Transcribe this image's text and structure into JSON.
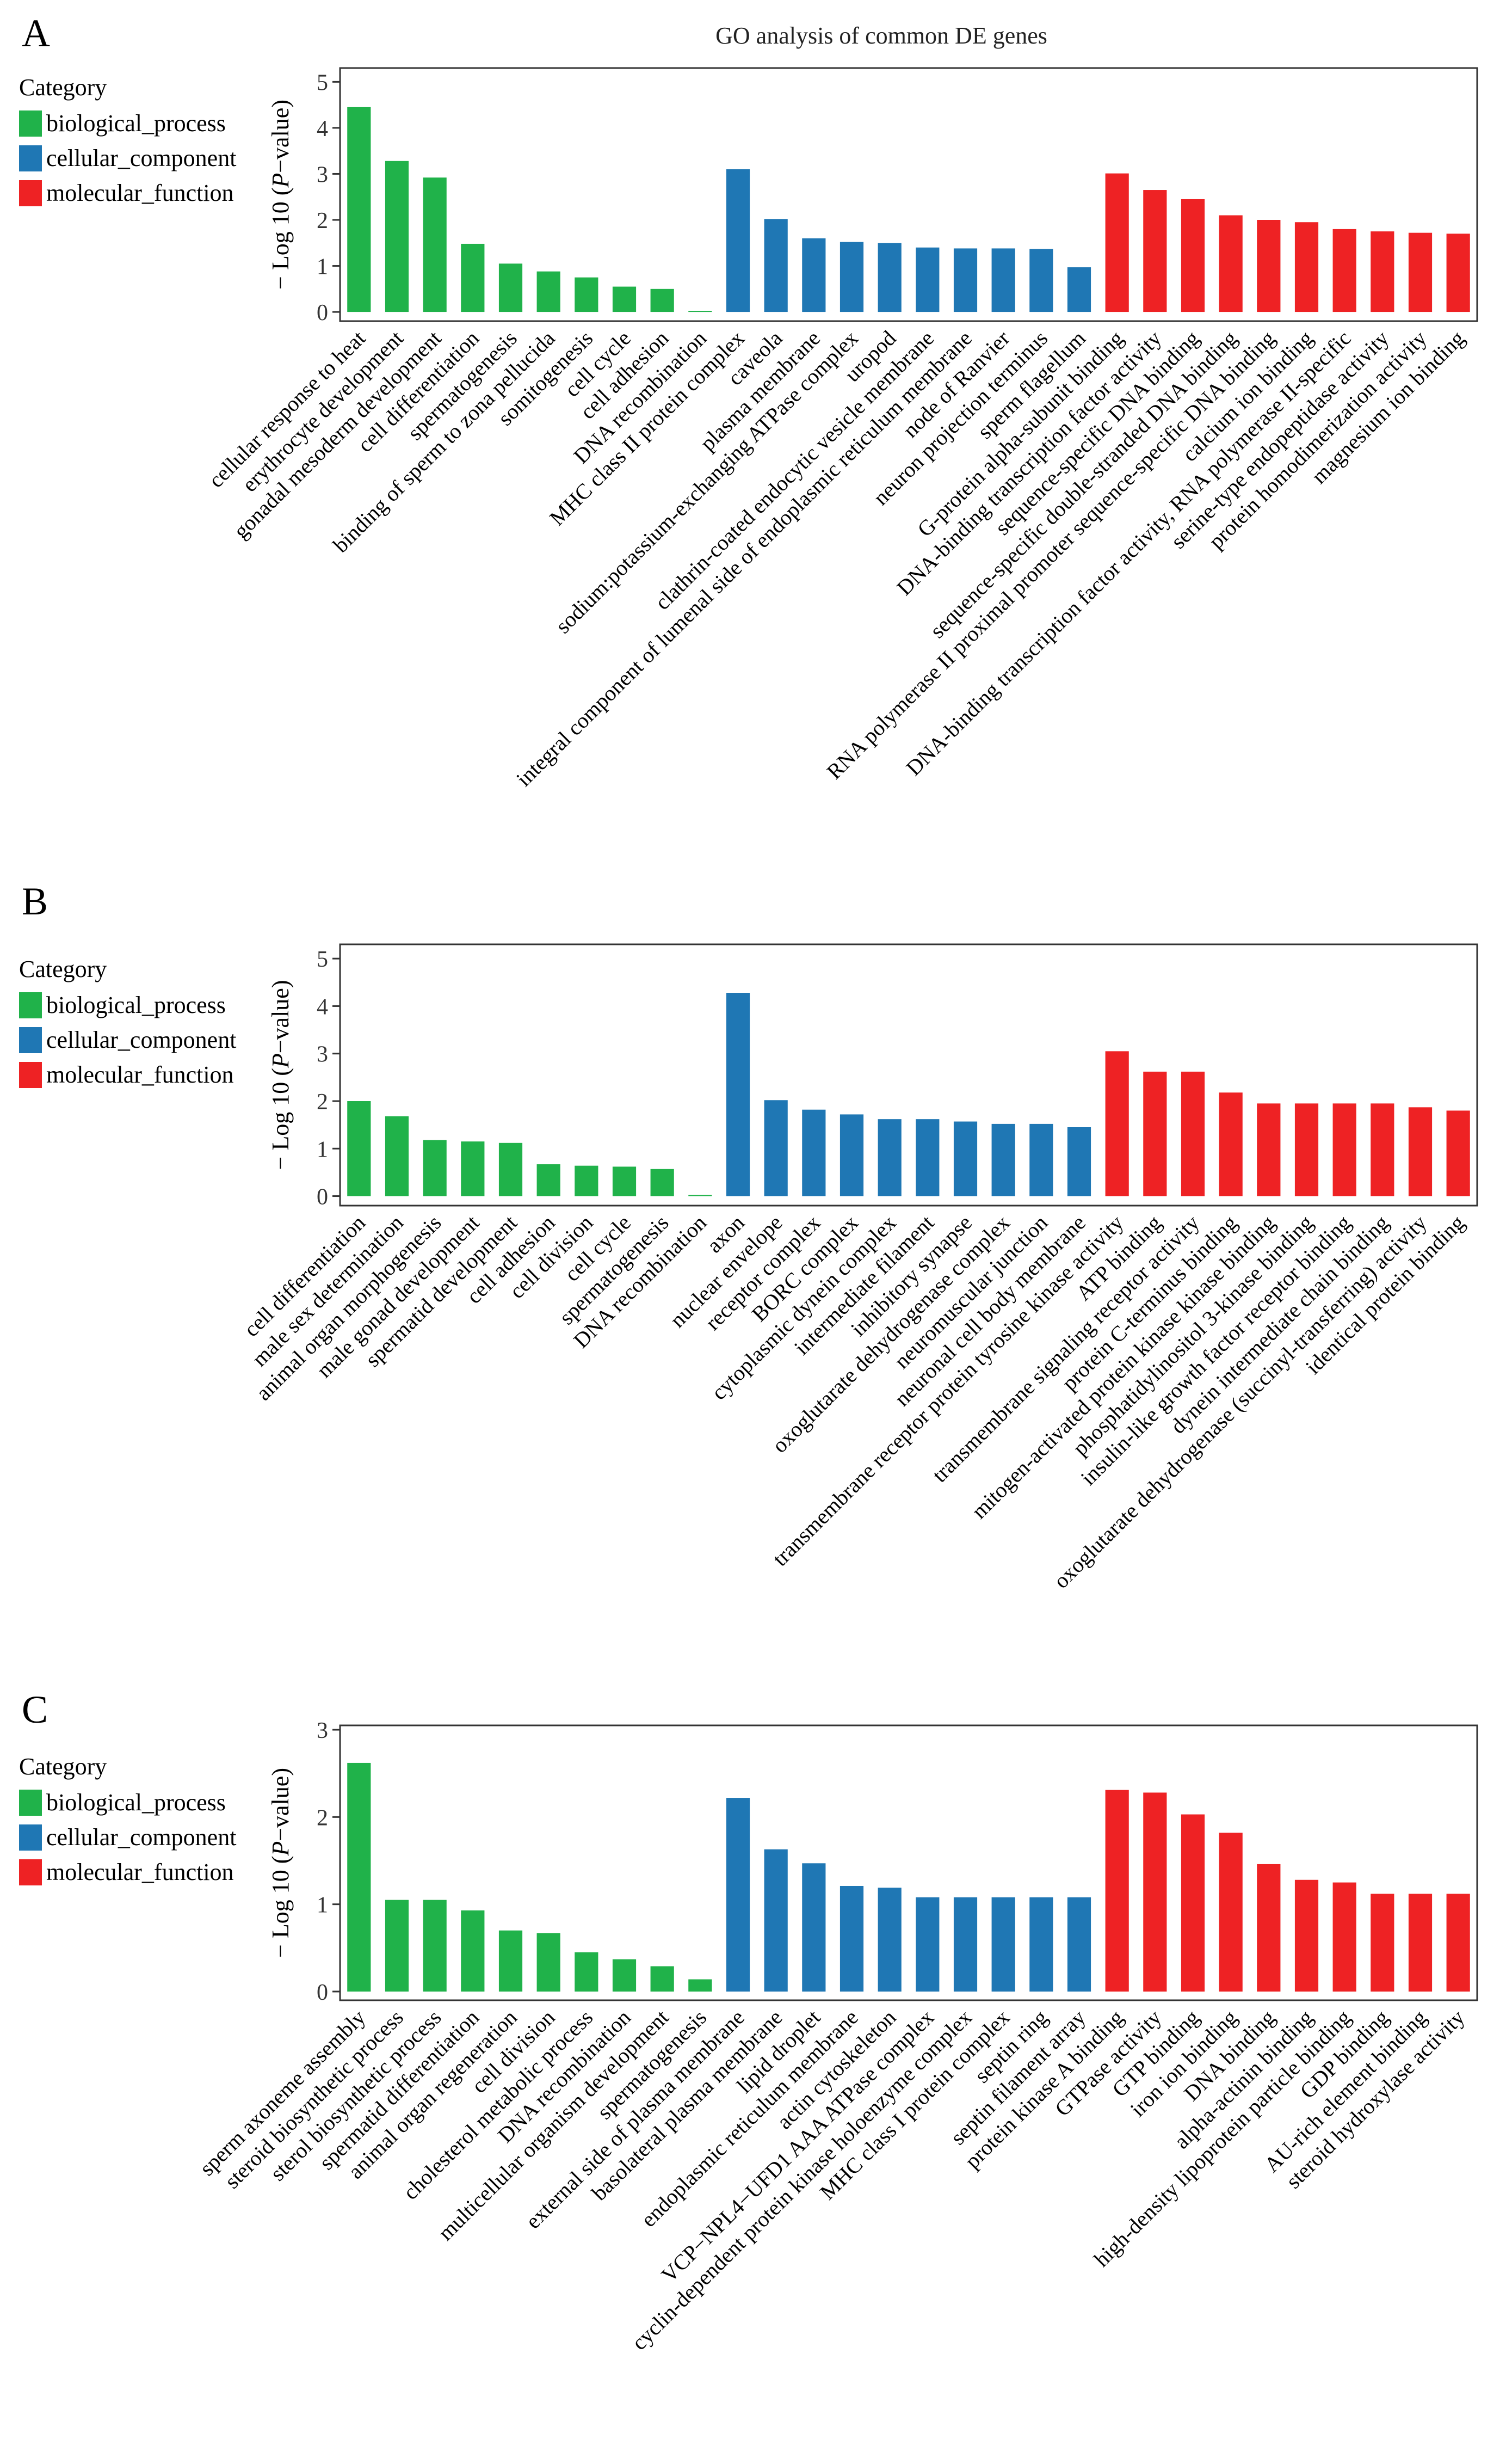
{
  "figure_title": "GO analysis of   common DE genes",
  "legend": {
    "title": "Category",
    "items": [
      {
        "label": "biological_process",
        "color": "#20b24a"
      },
      {
        "label": "cellular_component",
        "color": "#1f77b4"
      },
      {
        "label": "molecular_function",
        "color": "#ee2224"
      }
    ]
  },
  "y_axis_label": {
    "prefix": "− Log 10 (",
    "italic": "P",
    "suffix": "−value)"
  },
  "chart_data": [
    {
      "type": "bar",
      "panel_label": "A",
      "ylim": [
        -0.2,
        5.3
      ],
      "yticks": [
        0,
        1,
        2,
        3,
        4,
        5
      ],
      "categories": [
        "cellular response to heat",
        "erythrocyte development",
        "gonadal mesoderm development",
        "cell differentiation",
        "spermatogenesis",
        "binding of sperm to zona pellucida",
        "somitogenesis",
        "cell cycle",
        "cell adhesion",
        "DNA recombination",
        "MHC class II protein complex",
        "caveola",
        "plasma membrane",
        "sodium:potassium-exchanging ATPase complex",
        "uropod",
        "clathrin-coated endocytic vesicle membrane",
        "integral component of lumenal side of endoplasmic reticulum membrane",
        "node of Ranvier",
        "neuron projection terminus",
        "sperm flagellum",
        "G-protein alpha-subunit binding",
        "DNA-binding transcription factor activity",
        "sequence-specific DNA binding",
        "sequence-specific double-stranded DNA binding",
        "RNA polymerase II proximal promoter sequence-specific DNA binding",
        "calcium ion binding",
        "DNA-binding transcription factor activity, RNA polymerase II-specific",
        "serine-type endopeptidase activity",
        "protein homodimerization activity",
        "magnesium ion binding"
      ],
      "series_index": [
        0,
        0,
        0,
        0,
        0,
        0,
        0,
        0,
        0,
        0,
        1,
        1,
        1,
        1,
        1,
        1,
        1,
        1,
        1,
        1,
        2,
        2,
        2,
        2,
        2,
        2,
        2,
        2,
        2,
        2
      ],
      "values": [
        4.45,
        3.28,
        2.92,
        1.48,
        1.05,
        0.88,
        0.75,
        0.55,
        0.5,
        0.02,
        3.1,
        2.02,
        1.6,
        1.52,
        1.5,
        1.4,
        1.38,
        1.38,
        1.37,
        0.97,
        3.01,
        2.65,
        2.45,
        2.1,
        2.0,
        1.95,
        1.8,
        1.75,
        1.72,
        1.7
      ]
    },
    {
      "type": "bar",
      "panel_label": "B",
      "ylim": [
        -0.2,
        5.3
      ],
      "yticks": [
        0,
        1,
        2,
        3,
        4,
        5
      ],
      "categories": [
        "cell differentiation",
        "male sex determination",
        "animal organ morphogenesis",
        "male gonad development",
        "spermatid development",
        "cell adhesion",
        "cell division",
        "cell cycle",
        "spermatogenesis",
        "DNA recombination",
        "axon",
        "nuclear envelope",
        "receptor complex",
        "BORC complex",
        "cytoplasmic dynein complex",
        "intermediate filament",
        "inhibitory synapse",
        "oxoglutarate dehydrogenase complex",
        "neuromuscular junction",
        "neuronal cell body membrane",
        "transmembrane receptor protein tyrosine kinase activity",
        "ATP binding",
        "transmembrane signaling receptor activity",
        "protein C-terminus binding",
        "mitogen-activated protein kinase kinase binding",
        "phosphatidylinositol 3-kinase binding",
        "insulin-like growth factor receptor binding",
        "dynein intermediate chain binding",
        "oxoglutarate dehydrogenase (succinyl-transferring) activity",
        "identical protein binding"
      ],
      "series_index": [
        0,
        0,
        0,
        0,
        0,
        0,
        0,
        0,
        0,
        0,
        1,
        1,
        1,
        1,
        1,
        1,
        1,
        1,
        1,
        1,
        2,
        2,
        2,
        2,
        2,
        2,
        2,
        2,
        2,
        2
      ],
      "values": [
        2.0,
        1.68,
        1.18,
        1.15,
        1.12,
        0.67,
        0.64,
        0.62,
        0.57,
        0.02,
        4.28,
        2.02,
        1.82,
        1.72,
        1.62,
        1.62,
        1.57,
        1.52,
        1.52,
        1.45,
        3.05,
        2.62,
        2.62,
        2.18,
        1.95,
        1.95,
        1.95,
        1.95,
        1.87,
        1.8
      ]
    },
    {
      "type": "bar",
      "panel_label": "C",
      "ylim": [
        -0.1,
        3.05
      ],
      "yticks": [
        0,
        1,
        2,
        3
      ],
      "categories": [
        "sperm axoneme assembly",
        "steroid biosynthetic process",
        "sterol biosynthetic process",
        "spermatid differentiation",
        "animal organ regeneration",
        "cell division",
        "cholesterol metabolic process",
        "DNA recombination",
        "multicellular organism development",
        "spermatogenesis",
        "external side of plasma membrane",
        "basolateral plasma membrane",
        "lipid droplet",
        "endoplasmic reticulum membrane",
        "actin cytoskeleton",
        "VCP−NPL4−UFD1 AAA ATPase complex",
        "cyclin-dependent protein kinase holoenzyme complex",
        "MHC class I protein complex",
        "septin ring",
        "septin filament array",
        "protein kinase A binding",
        "GTPase activity",
        "GTP binding",
        "iron ion binding",
        "DNA binding",
        "alpha-actinin binding",
        "high-density lipoprotein particle binding",
        "GDP binding",
        "AU-rich element binding",
        "steroid hydroxylase activity"
      ],
      "series_index": [
        0,
        0,
        0,
        0,
        0,
        0,
        0,
        0,
        0,
        0,
        1,
        1,
        1,
        1,
        1,
        1,
        1,
        1,
        1,
        1,
        2,
        2,
        2,
        2,
        2,
        2,
        2,
        2,
        2,
        2
      ],
      "values": [
        2.62,
        1.05,
        1.05,
        0.93,
        0.7,
        0.67,
        0.45,
        0.37,
        0.29,
        0.14,
        2.22,
        1.63,
        1.47,
        1.21,
        1.19,
        1.08,
        1.08,
        1.08,
        1.08,
        1.08,
        2.31,
        2.28,
        2.03,
        1.82,
        1.46,
        1.28,
        1.25,
        1.12,
        1.12,
        1.12
      ]
    }
  ]
}
